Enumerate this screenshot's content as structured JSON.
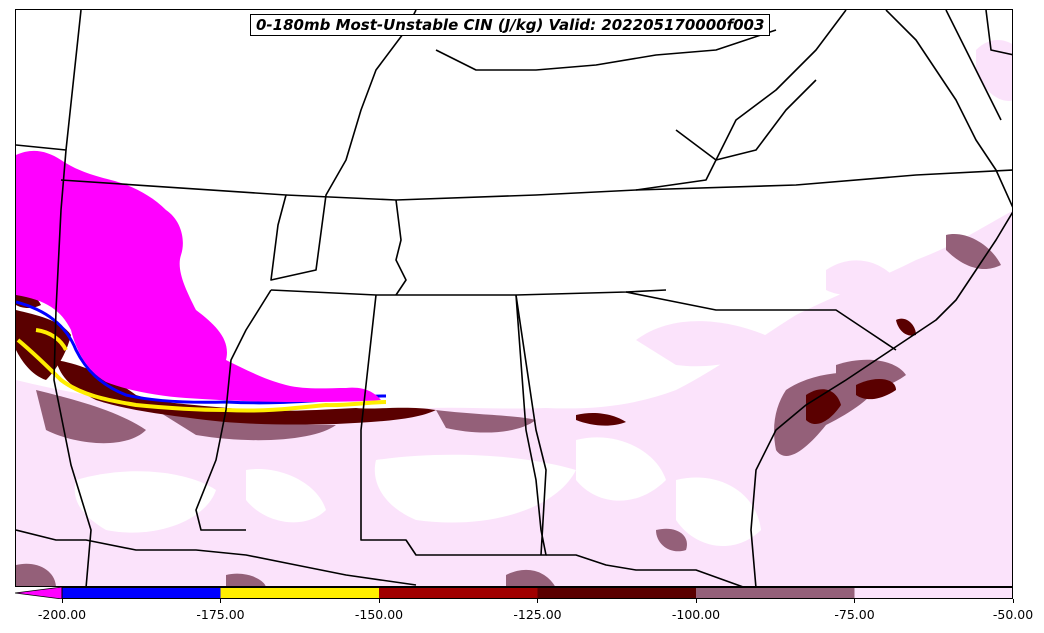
{
  "title": "0-180mb Most-Unstable CIN (J/kg) Valid: 202205170000f003",
  "field_colors": {
    "lt_-200": "#ff00ff",
    "-200_-175": "#0000ff",
    "-175_-150": "#ffee00",
    "-150_-125": "#a00000",
    "-125_-100": "#5a0000",
    "-100_-75": "#946079",
    "-75_-50": "#fbe3fb",
    "background": "#ffffff",
    "boundaries": "#000000"
  },
  "colorbar": {
    "extend": "min",
    "segments": [
      {
        "from": -200,
        "to": -175,
        "color": "#0000ff"
      },
      {
        "from": -175,
        "to": -150,
        "color": "#ffee00"
      },
      {
        "from": -150,
        "to": -125,
        "color": "#a00000"
      },
      {
        "from": -125,
        "to": -100,
        "color": "#5a0000"
      },
      {
        "from": -100,
        "to": -75,
        "color": "#946079"
      },
      {
        "from": -75,
        "to": -50,
        "color": "#fbe3fb"
      }
    ],
    "under_color": "#ff00ff",
    "ticks": [
      "-200.00",
      "-175.00",
      "-150.00",
      "-125.00",
      "-100.00",
      "-75.00",
      "-50.00"
    ]
  }
}
